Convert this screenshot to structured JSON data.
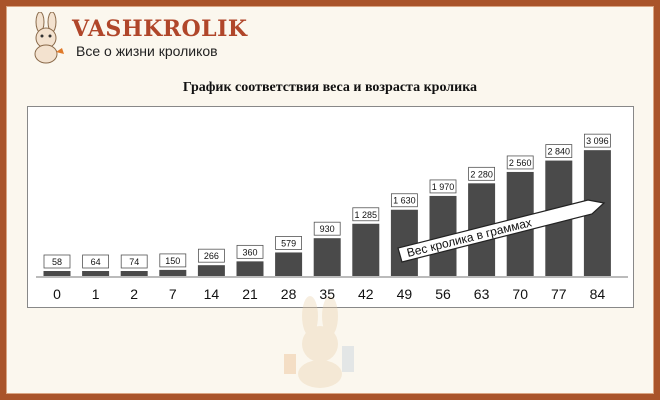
{
  "site": {
    "brand": "VASHKROLIK",
    "tagline": "Все о жизни кроликов"
  },
  "icons": {
    "logo": "rabbit-logo-icon",
    "watermark": "rabbit-watermark-icon"
  },
  "colors": {
    "frame": "#a9542a",
    "brand": "#b0462a",
    "bar": "#4a4a4a",
    "bar_label_bg": "#ffffff"
  },
  "chart_data": {
    "type": "bar",
    "title": "График соответствия веса и возраста кролика",
    "categories": [
      "0",
      "1",
      "2",
      "7",
      "14",
      "21",
      "28",
      "35",
      "42",
      "49",
      "56",
      "63",
      "70",
      "77",
      "84"
    ],
    "values": [
      58,
      64,
      74,
      150,
      266,
      360,
      579,
      930,
      1285,
      1630,
      1970,
      2280,
      2560,
      2840,
      3096
    ],
    "value_labels": [
      "58",
      "64",
      "74",
      "150",
      "266",
      "360",
      "579",
      "930",
      "1 285",
      "1 630",
      "1 970",
      "2 280",
      "2 560",
      "2 840",
      "3 096"
    ],
    "annotation": "Вес кролика в граммах",
    "ylim": [
      0,
      3300
    ],
    "grid": false,
    "legend": "none"
  }
}
